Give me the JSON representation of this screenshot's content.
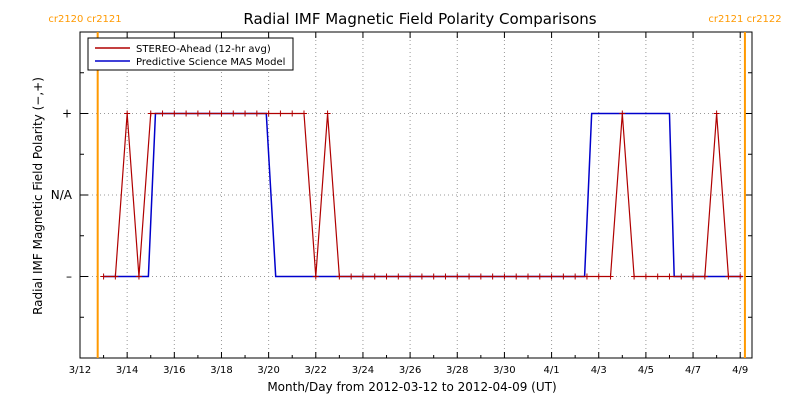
{
  "chart_data": {
    "type": "line",
    "title": "Radial IMF Magnetic Field Polarity Comparisons",
    "xlabel": "Month/Day from 2012-03-12 to 2012-04-09 (UT)",
    "ylabel": "Radial IMF Magnetic Field Polarity (−,+)",
    "x_unit": "days since 2012-03-12 00:00 UT",
    "xlim": [
      0,
      28.5
    ],
    "ylim": [
      -2,
      2
    ],
    "x_ticks": [
      {
        "x": 0,
        "label": "3/12"
      },
      {
        "x": 2,
        "label": "3/14"
      },
      {
        "x": 4,
        "label": "3/16"
      },
      {
        "x": 6,
        "label": "3/18"
      },
      {
        "x": 8,
        "label": "3/20"
      },
      {
        "x": 10,
        "label": "3/22"
      },
      {
        "x": 12,
        "label": "3/24"
      },
      {
        "x": 14,
        "label": "3/26"
      },
      {
        "x": 16,
        "label": "3/28"
      },
      {
        "x": 18,
        "label": "3/30"
      },
      {
        "x": 20,
        "label": "4/1"
      },
      {
        "x": 22,
        "label": "4/3"
      },
      {
        "x": 24,
        "label": "4/5"
      },
      {
        "x": 26,
        "label": "4/7"
      },
      {
        "x": 28,
        "label": "4/9"
      }
    ],
    "y_ticks": [
      {
        "y": 1,
        "label": "+"
      },
      {
        "y": 0,
        "label": "N/A"
      },
      {
        "y": -1,
        "label": "–"
      }
    ],
    "carrington_markers": [
      {
        "x": 0.75,
        "label": "cr2120 cr2121",
        "color": "#ff9900"
      },
      {
        "x": 28.2,
        "label": "cr2121 cr2122",
        "color": "#ff9900"
      }
    ],
    "legend_position": "top-left",
    "series": [
      {
        "name": "STEREO-Ahead (12-hr avg)",
        "color": "#b00000",
        "x": [
          1.0,
          1.5,
          2.0,
          2.5,
          3.0,
          3.5,
          4.0,
          4.5,
          5.0,
          5.5,
          6.0,
          6.5,
          7.0,
          7.5,
          8.0,
          8.5,
          9.0,
          9.5,
          10.0,
          10.5,
          11.0,
          11.5,
          12.0,
          12.5,
          13.0,
          13.5,
          14.0,
          14.5,
          15.0,
          15.5,
          16.0,
          16.5,
          17.0,
          17.5,
          18.0,
          18.5,
          19.0,
          19.5,
          20.0,
          20.5,
          21.0,
          21.5,
          22.0,
          22.5,
          23.0,
          23.5,
          24.0,
          24.5,
          25.0,
          25.5,
          26.0,
          26.5,
          27.0,
          27.5,
          28.0
        ],
        "y": [
          -1,
          -1,
          1,
          -1,
          1,
          1,
          1,
          1,
          1,
          1,
          1,
          1,
          1,
          1,
          1,
          1,
          1,
          1,
          -1,
          1,
          -1,
          -1,
          -1,
          -1,
          -1,
          -1,
          -1,
          -1,
          -1,
          -1,
          -1,
          -1,
          -1,
          -1,
          -1,
          -1,
          -1,
          -1,
          -1,
          -1,
          -1,
          -1,
          -1,
          -1,
          1,
          -1,
          -1,
          -1,
          -1,
          -1,
          -1,
          -1,
          1,
          -1,
          -1
        ]
      },
      {
        "name": "Predictive Science MAS Model",
        "color": "#0000cc",
        "x": [
          1.0,
          2.9,
          3.2,
          7.9,
          8.3,
          21.4,
          21.7,
          25.0,
          25.2,
          28.1
        ],
        "y": [
          -1,
          -1,
          1,
          1,
          -1,
          -1,
          1,
          1,
          -1,
          -1
        ]
      }
    ]
  }
}
